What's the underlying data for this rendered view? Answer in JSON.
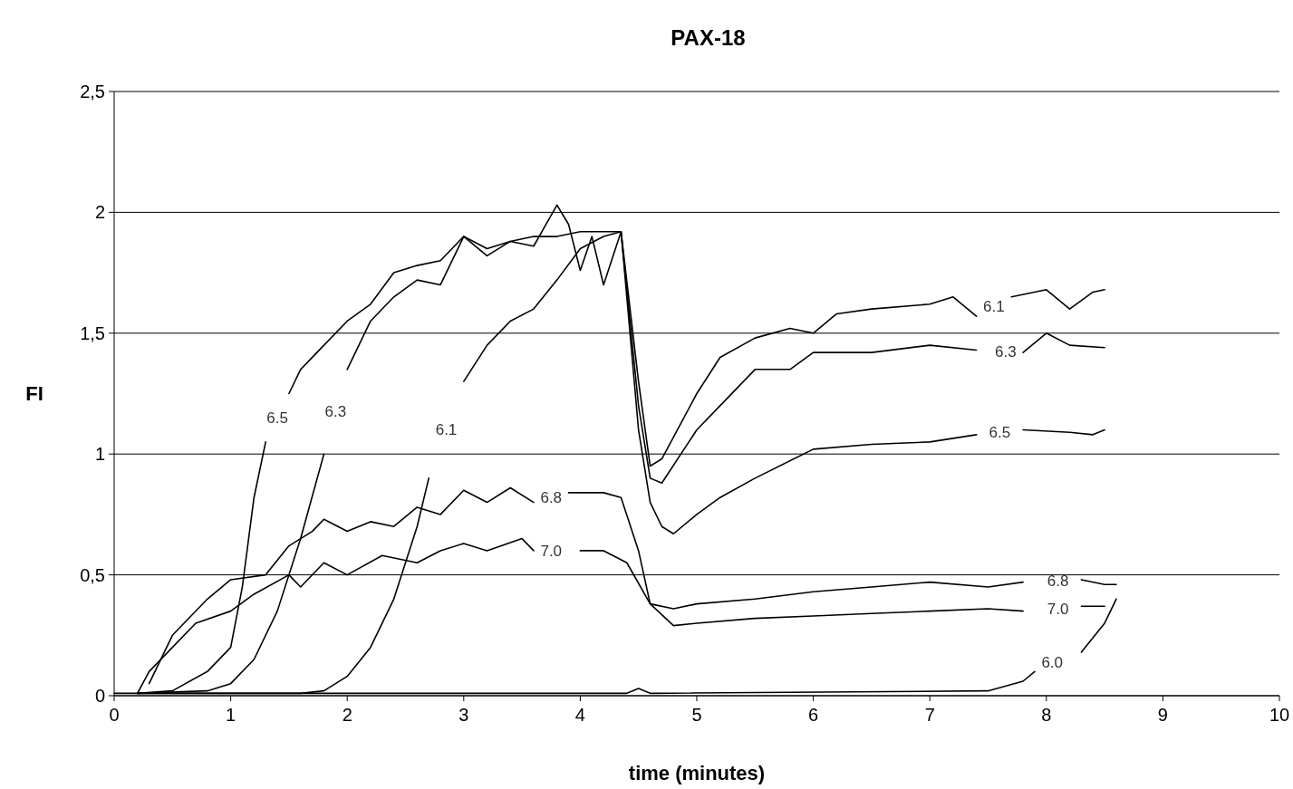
{
  "chart_data": {
    "type": "line",
    "title": "PAX-18",
    "xlabel": "time (minutes)",
    "ylabel": "FI",
    "xlim": [
      0,
      10
    ],
    "xticks": [
      0,
      1,
      2,
      3,
      4,
      5,
      6,
      7,
      8,
      9,
      10
    ],
    "ylim": [
      0,
      2.5
    ],
    "yticks": [
      0,
      {
        "value": 0.5,
        "label": "0,5"
      },
      1,
      {
        "value": 1.5,
        "label": "1,5"
      },
      2,
      {
        "value": 2.5,
        "label": "2,5"
      }
    ],
    "grid": "y",
    "marker": "none",
    "line_style": "solid",
    "series": [
      {
        "name": "6.5",
        "color": "#000000",
        "x": [
          0.2,
          0.5,
          0.8,
          1,
          1.1,
          1.2,
          1.3,
          1.4,
          1.5,
          1.6,
          1.8,
          2,
          2.2,
          2.4,
          2.6,
          2.8,
          3,
          3.2,
          3.4,
          3.6,
          3.8,
          4,
          4.2,
          4.35,
          4.5,
          4.6,
          4.7,
          4.8,
          5,
          5.2,
          5.5,
          6,
          6.5,
          7,
          7.4,
          7.6,
          7.8,
          8.2,
          8.4,
          8.5
        ],
        "values": [
          0.01,
          0.02,
          0.1,
          0.2,
          0.45,
          0.82,
          1.05,
          null,
          1.25,
          1.35,
          1.45,
          1.55,
          1.62,
          1.75,
          1.78,
          1.8,
          1.9,
          1.85,
          1.88,
          1.9,
          1.9,
          1.92,
          1.92,
          1.92,
          1.1,
          0.8,
          0.7,
          0.67,
          0.75,
          0.82,
          0.9,
          1.02,
          1.04,
          1.05,
          1.08,
          null,
          1.1,
          1.09,
          1.08,
          1.1
        ]
      },
      {
        "name": "6.3",
        "color": "#000000",
        "x": [
          0.2,
          0.8,
          1,
          1.2,
          1.4,
          1.6,
          1.8,
          1.9,
          2,
          2.2,
          2.4,
          2.6,
          2.8,
          3,
          3.2,
          3.4,
          3.6,
          3.8,
          3.9,
          4,
          4.1,
          4.2,
          4.35,
          4.5,
          4.6,
          4.7,
          5,
          5.2,
          5.5,
          5.8,
          6,
          6.5,
          7,
          7.4,
          7.65,
          7.8,
          8,
          8.2,
          8.5
        ],
        "values": [
          0.01,
          0.02,
          0.05,
          0.15,
          0.35,
          0.65,
          1.0,
          null,
          1.35,
          1.55,
          1.65,
          1.72,
          1.7,
          1.9,
          1.82,
          1.88,
          1.86,
          2.03,
          1.95,
          1.76,
          1.9,
          1.7,
          1.92,
          1.2,
          0.9,
          0.88,
          1.1,
          1.2,
          1.35,
          1.35,
          1.42,
          1.42,
          1.45,
          1.43,
          null,
          1.42,
          1.5,
          1.45,
          1.44
        ]
      },
      {
        "name": "6.1",
        "color": "#000000",
        "x": [
          0.2,
          1.6,
          1.8,
          2,
          2.2,
          2.4,
          2.6,
          2.7,
          2.85,
          3,
          3.2,
          3.4,
          3.6,
          3.8,
          4,
          4.2,
          4.35,
          4.5,
          4.6,
          4.7,
          5,
          5.2,
          5.5,
          5.8,
          6,
          6.2,
          6.5,
          7,
          7.2,
          7.4,
          7.55,
          7.7,
          8,
          8.2,
          8.4,
          8.5
        ],
        "values": [
          0.01,
          0.01,
          0.02,
          0.08,
          0.2,
          0.4,
          0.7,
          0.9,
          null,
          1.3,
          1.45,
          1.55,
          1.6,
          1.72,
          1.85,
          1.9,
          1.92,
          1.3,
          0.95,
          0.98,
          1.25,
          1.4,
          1.48,
          1.52,
          1.5,
          1.58,
          1.6,
          1.62,
          1.65,
          1.57,
          null,
          1.65,
          1.68,
          1.6,
          1.67,
          1.68
        ]
      },
      {
        "name": "6.8",
        "color": "#000000",
        "x": [
          0.3,
          0.5,
          0.8,
          1,
          1.3,
          1.5,
          1.7,
          1.8,
          2,
          2.2,
          2.4,
          2.6,
          2.8,
          3,
          3.2,
          3.4,
          3.6,
          3.75,
          3.9,
          4.2,
          4.35,
          4.5,
          4.6,
          4.8,
          5,
          5.5,
          6,
          6.5,
          7,
          7.5,
          7.8,
          8.1,
          8.3,
          8.5,
          8.6
        ],
        "values": [
          0.05,
          0.25,
          0.4,
          0.48,
          0.5,
          0.62,
          0.68,
          0.73,
          0.68,
          0.72,
          0.7,
          0.78,
          0.75,
          0.85,
          0.8,
          0.86,
          0.8,
          null,
          0.84,
          0.84,
          0.82,
          0.6,
          0.38,
          0.36,
          0.38,
          0.4,
          0.43,
          0.45,
          0.47,
          0.45,
          0.47,
          null,
          0.48,
          0.46,
          0.46
        ]
      },
      {
        "name": "7.0",
        "color": "#000000",
        "x": [
          0.2,
          0.3,
          0.5,
          0.7,
          1,
          1.2,
          1.5,
          1.6,
          1.8,
          2,
          2.3,
          2.6,
          2.8,
          3,
          3.2,
          3.5,
          3.6,
          3.75,
          4,
          4.2,
          4.4,
          4.6,
          4.8,
          5,
          5.5,
          6,
          6.5,
          7,
          7.5,
          7.8,
          8.1,
          8.3,
          8.5
        ],
        "values": [
          0.01,
          0.1,
          0.2,
          0.3,
          0.35,
          0.42,
          0.5,
          0.45,
          0.55,
          0.5,
          0.58,
          0.55,
          0.6,
          0.63,
          0.6,
          0.65,
          0.6,
          null,
          0.6,
          0.6,
          0.55,
          0.38,
          0.29,
          0.3,
          0.32,
          0.33,
          0.34,
          0.35,
          0.36,
          0.35,
          null,
          0.37,
          0.37
        ]
      },
      {
        "name": "6.0",
        "color": "#000000",
        "x": [
          0,
          4.4,
          4.5,
          4.6,
          7.5,
          7.8,
          7.9,
          8.05,
          8.3,
          8.5,
          8.6
        ],
        "values": [
          0.01,
          0.01,
          0.03,
          0.01,
          0.02,
          0.06,
          0.1,
          null,
          0.18,
          0.3,
          0.4
        ]
      }
    ]
  }
}
